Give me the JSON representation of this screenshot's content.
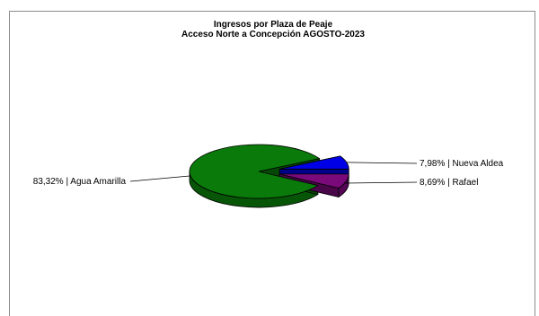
{
  "chart_data": {
    "type": "pie",
    "title": "Ingresos por Plaza de Peaje",
    "subtitle": "Acceso Norte a Concepción AGOSTO-2023",
    "slices": [
      {
        "name": "Agua Amarilla",
        "value": 83.32,
        "label": "83,32% | Agua Amarilla",
        "color": "#0a7a0a"
      },
      {
        "name": "Nueva Aldea",
        "value": 7.98,
        "label": "7,98% | Nueva Aldea",
        "color": "#0000e6"
      },
      {
        "name": "Rafael",
        "value": 8.69,
        "label": "8,69% | Rafael",
        "color": "#7a0a7a"
      }
    ],
    "legend": "none"
  }
}
